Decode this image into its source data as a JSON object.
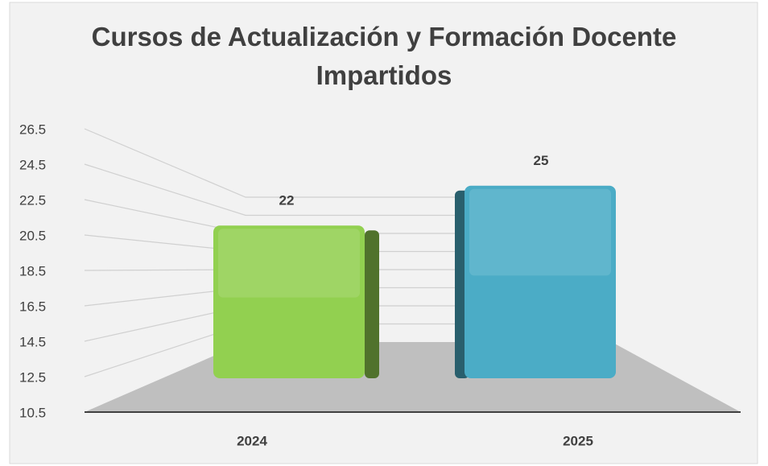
{
  "chart_data": {
    "type": "bar3d",
    "title": "Cursos de Actualización y Formación Docente Impartidos",
    "categories": [
      "2024",
      "2025"
    ],
    "values": [
      22,
      25
    ],
    "colors": [
      "#92d050",
      "#4bacc6"
    ],
    "ylim": [
      10.5,
      26.5
    ],
    "yticks": [
      10.5,
      12.5,
      14.5,
      16.5,
      18.5,
      20.5,
      22.5,
      24.5,
      26.5
    ],
    "grid": true
  }
}
